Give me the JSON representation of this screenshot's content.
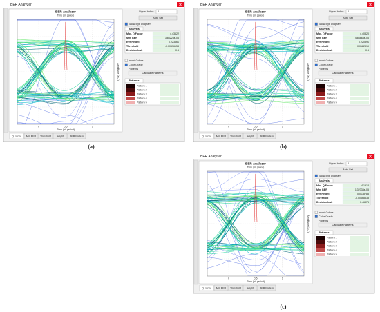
{
  "panels": [
    {
      "caption": "(a)",
      "window_title": "BER Analyzer",
      "chart_title": "BER Analyzer",
      "chart_subtitle": "Time (bit period)",
      "x_label": "Time (bit period)",
      "y_label": "Amplitude (a.u.)",
      "x_tick_labels": [
        "0",
        "0.5",
        "1"
      ],
      "signal_index_label": "Signal Index:",
      "signal_index": "0",
      "auto_set": "Auto Set",
      "show_eye": "Show Eye Diagram",
      "analysis": {
        "heading": "Analysis",
        "rows": [
          {
            "name": "Max. Q Factor",
            "value": "4.43622"
          },
          {
            "name": "Min. BER",
            "value": "3.83224e-06"
          },
          {
            "name": "Eye Height",
            "value": "0.223661"
          },
          {
            "name": "Threshold",
            "value": "-0.00636153"
          },
          {
            "name": "Decision Inst.",
            "value": "0.5"
          }
        ]
      },
      "invert_colors": "Invert Colors",
      "color_grade": "Color Grade",
      "patterns_label": "Patterns",
      "calculate": "Calculate Patterns",
      "patterns_heading": "Patterns",
      "pattern_names": [
        "Pattern 1",
        "Pattern 2",
        "Pattern 3",
        "Pattern 4",
        "Pattern 5"
      ],
      "tabs": [
        "Q Factor",
        "Min BER",
        "Threshold",
        "Height",
        "BER Pattern"
      ]
    },
    {
      "caption": "(b)",
      "window_title": "BER Analyzer",
      "chart_title": "BER Analyzer",
      "chart_subtitle": "Time (bit period)",
      "x_label": "Time (bit period)",
      "y_label": "Amplitude (a.u.)",
      "x_tick_labels": [
        "0",
        "0.5",
        "1"
      ],
      "signal_index_label": "Signal Index:",
      "signal_index": "0",
      "auto_set": "Auto Set",
      "show_eye": "Show Eye Diagram",
      "analysis": {
        "heading": "Analysis",
        "rows": [
          {
            "name": "Max. Q Factor",
            "value": "4.40820"
          },
          {
            "name": "Min. BER",
            "value": "4.83864e-06"
          },
          {
            "name": "Eye Height",
            "value": "0.220891"
          },
          {
            "name": "Threshold",
            "value": "-0.0122319"
          },
          {
            "name": "Decision Inst.",
            "value": "0.5"
          }
        ]
      },
      "invert_colors": "Invert Colors",
      "color_grade": "Color Grade",
      "patterns_label": "Patterns",
      "calculate": "Calculate Patterns",
      "patterns_heading": "Patterns",
      "pattern_names": [
        "Pattern 1",
        "Pattern 2",
        "Pattern 3",
        "Pattern 4",
        "Pattern 5"
      ],
      "tabs": [
        "Q Factor",
        "Min BER",
        "Threshold",
        "Height",
        "BER Pattern"
      ]
    },
    {
      "caption": "(c)",
      "window_title": "BER Analyzer",
      "chart_title": "BER Analyzer",
      "chart_subtitle": "Time (bit period)",
      "x_label": "Time (bit period)",
      "y_label": "Amplitude (a.u.)",
      "x_tick_labels": [
        "0",
        "0.5",
        "1"
      ],
      "signal_index_label": "Signal Index:",
      "signal_index": "0",
      "auto_set": "Auto Set",
      "show_eye": "Show Eye Diagram",
      "analysis": {
        "heading": "Analysis",
        "rows": [
          {
            "name": "Max. Q Factor",
            "value": "4.1913"
          },
          {
            "name": "Min. BER",
            "value": "1.32334e-05"
          },
          {
            "name": "Eye Height",
            "value": "0.0138783"
          },
          {
            "name": "Threshold",
            "value": "-0.00668338"
          },
          {
            "name": "Decision Inst.",
            "value": "0.46875"
          }
        ]
      },
      "invert_colors": "Invert Colors",
      "color_grade": "Color Grade",
      "patterns_label": "Patterns",
      "calculate": "Calculate Patterns",
      "patterns_heading": "Patterns",
      "pattern_names": [
        "Pattern 1",
        "Pattern 2",
        "Pattern 3",
        "Pattern 4",
        "Pattern 5"
      ],
      "tabs": [
        "Q Factor",
        "Min BER",
        "Threshold",
        "Height",
        "BER Pattern"
      ]
    }
  ]
}
